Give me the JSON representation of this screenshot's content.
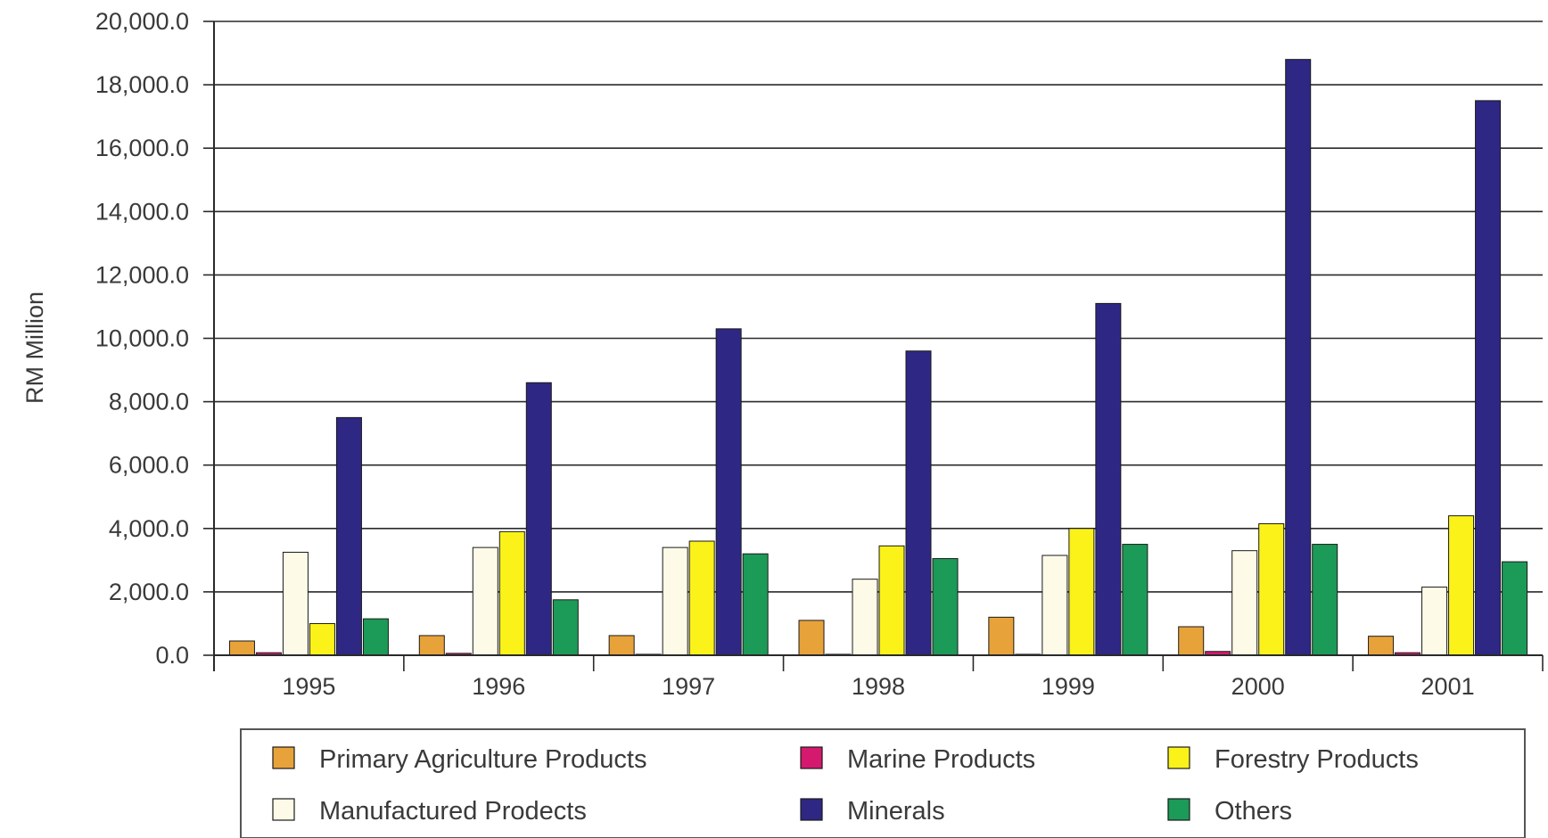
{
  "chart_data": {
    "type": "bar",
    "title": "",
    "xlabel": "",
    "ylabel": "RM Million",
    "ylim": [
      0,
      20000
    ],
    "yticks": [
      0,
      2000,
      4000,
      6000,
      8000,
      10000,
      12000,
      14000,
      16000,
      18000,
      20000
    ],
    "ytick_labels": [
      "0.0",
      "2,000.0",
      "4,000.0",
      "6,000.0",
      "8,000.0",
      "10,000.0",
      "12,000.0",
      "14,000.0",
      "16,000.0",
      "18,000.0",
      "20,000.0"
    ],
    "categories": [
      "1995",
      "1996",
      "1997",
      "1998",
      "1999",
      "2000",
      "2001"
    ],
    "grid": true,
    "legend_position": "bottom",
    "series": [
      {
        "name": "Primary Agriculture Products",
        "color": "#e8a23a",
        "values": [
          450,
          620,
          620,
          1100,
          1200,
          900,
          600
        ]
      },
      {
        "name": "Marine Products",
        "color": "#d4196e",
        "values": [
          80,
          60,
          30,
          30,
          30,
          120,
          80
        ]
      },
      {
        "name": "Manufactured Prodects",
        "color": "#fdfbe8",
        "values": [
          3250,
          3400,
          3400,
          2400,
          3150,
          3300,
          2150
        ]
      },
      {
        "name": "Forestry Products",
        "color": "#fbf21a",
        "values": [
          1000,
          3900,
          3600,
          3450,
          4000,
          4150,
          4400
        ]
      },
      {
        "name": "Minerals",
        "color": "#2e2784",
        "values": [
          7500,
          8600,
          10300,
          9600,
          11100,
          18800,
          17500
        ]
      },
      {
        "name": "Others",
        "color": "#1c9a57",
        "values": [
          1150,
          1750,
          3200,
          3050,
          3500,
          3500,
          2950
        ]
      }
    ]
  }
}
